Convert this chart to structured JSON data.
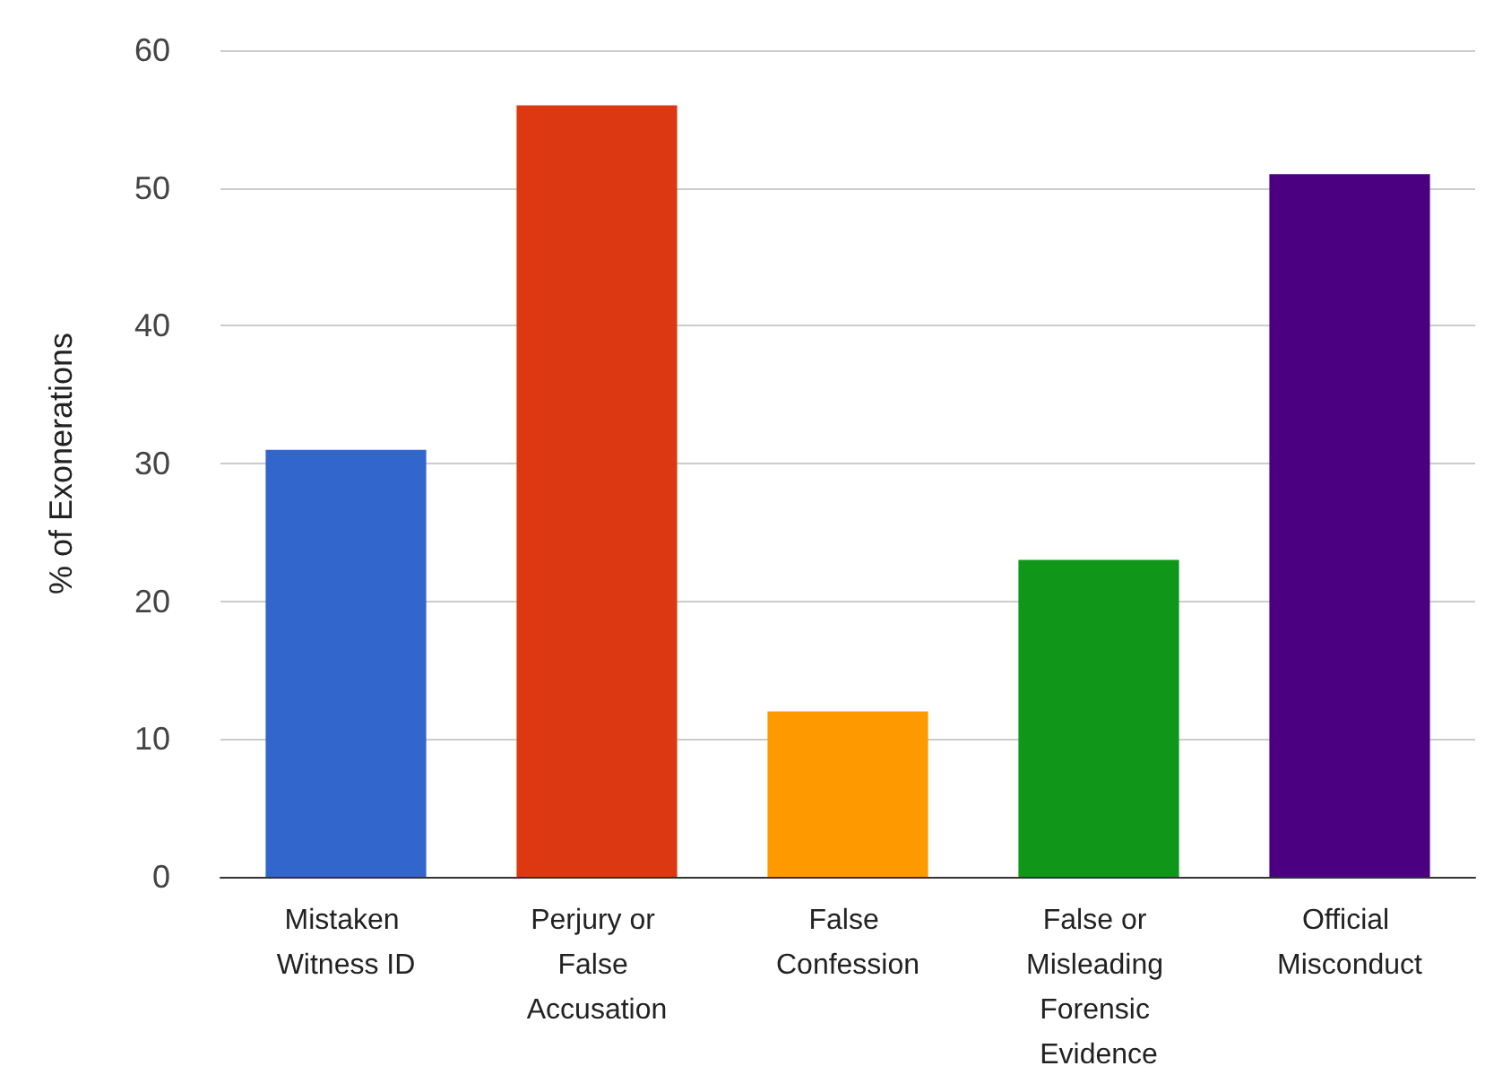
{
  "chart_data": {
    "type": "bar",
    "ylabel": "% of Exonerations",
    "categories": [
      "Mistaken Witness ID",
      "Perjury or False Accusation",
      "False Confession",
      "False or Misleading Forensic Evidence",
      "Official Misconduct"
    ],
    "values": [
      31,
      56,
      12,
      23,
      51
    ],
    "colors": [
      "#3366cc",
      "#dc3912",
      "#ff9900",
      "#109618",
      "#4b0082"
    ],
    "ylim": [
      0,
      60
    ],
    "yticks": [
      0,
      10,
      20,
      30,
      40,
      50,
      60
    ],
    "grid": "y"
  }
}
